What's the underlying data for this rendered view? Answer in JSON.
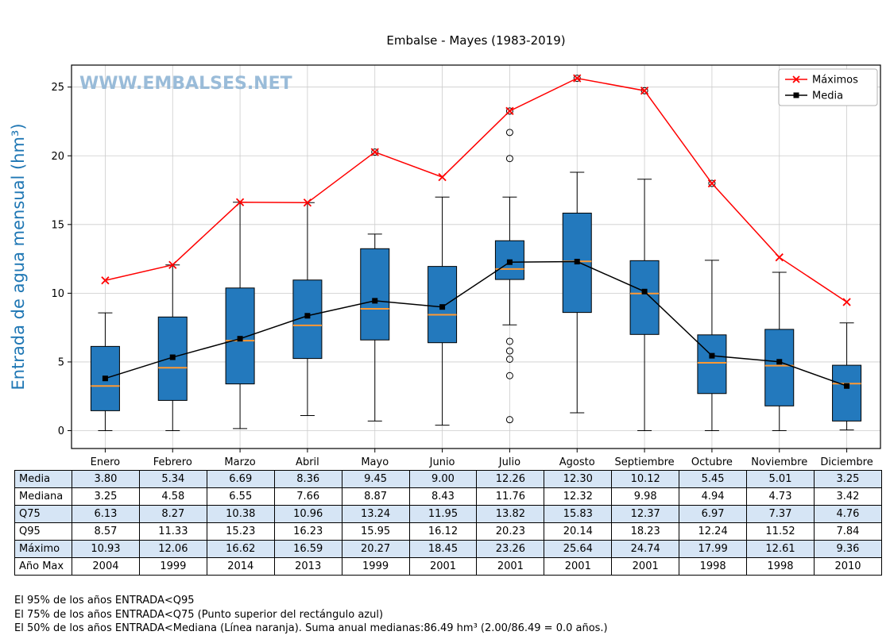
{
  "watermark": "WWW.EMBALSES.NET",
  "chart_data": {
    "type": "boxplot",
    "title": "Embalse - Mayes (1983-2019)",
    "ylabel": "Entrada de agua mensual (hm³)",
    "ylabel_color": "#1f77b4",
    "watermark_color": "#90b5d5",
    "box_fill": "#2379bd",
    "median_color": "#ff9933",
    "grid": true,
    "legend_position": "top-right",
    "ylim": [
      -1.3,
      26.6
    ],
    "yticks": [
      0,
      5,
      10,
      15,
      20,
      25
    ],
    "categories": [
      "Enero",
      "Febrero",
      "Marzo",
      "Abril",
      "Mayo",
      "Junio",
      "Julio",
      "Agosto",
      "Septiembre",
      "Octubre",
      "Noviembre",
      "Diciembre"
    ],
    "boxes": {
      "q1": [
        1.45,
        2.2,
        3.4,
        5.25,
        6.6,
        6.4,
        11.0,
        8.6,
        7.0,
        2.7,
        1.8,
        0.7
      ],
      "q3": [
        6.13,
        8.27,
        10.38,
        10.96,
        13.24,
        11.95,
        13.82,
        15.83,
        12.37,
        6.97,
        7.37,
        4.76
      ],
      "median": [
        3.25,
        4.58,
        6.55,
        7.66,
        8.87,
        8.43,
        11.76,
        12.32,
        9.98,
        4.94,
        4.73,
        3.42
      ],
      "whisker_low": [
        0.0,
        0.0,
        0.15,
        1.1,
        0.7,
        0.4,
        7.7,
        1.3,
        0.0,
        0.0,
        0.0,
        0.05
      ],
      "whisker_high": [
        8.57,
        12.06,
        16.62,
        16.59,
        14.3,
        17.0,
        17.0,
        18.8,
        18.3,
        12.4,
        11.52,
        7.84
      ],
      "outliers": [
        [],
        [],
        [],
        [],
        [
          20.27
        ],
        [],
        [
          23.26,
          21.7,
          19.8,
          6.5,
          5.8,
          5.2,
          4.0,
          0.8
        ],
        [
          25.64
        ],
        [
          24.74
        ],
        [
          17.99
        ],
        [],
        []
      ]
    },
    "series": [
      {
        "name": "Máximos",
        "color": "#ff0000",
        "marker": "x",
        "values": [
          10.93,
          12.06,
          16.62,
          16.59,
          20.27,
          18.45,
          23.26,
          25.64,
          24.74,
          17.99,
          12.61,
          9.36
        ]
      },
      {
        "name": "Media",
        "color": "#000000",
        "marker": "square",
        "values": [
          3.8,
          5.34,
          6.69,
          8.36,
          9.45,
          9.0,
          12.26,
          12.3,
          10.12,
          5.45,
          5.01,
          3.25
        ]
      }
    ]
  },
  "table": {
    "rows": [
      {
        "label": "Media",
        "values": [
          "3.80",
          "5.34",
          "6.69",
          "8.36",
          "9.45",
          "9.00",
          "12.26",
          "12.30",
          "10.12",
          "5.45",
          "5.01",
          "3.25"
        ]
      },
      {
        "label": "Mediana",
        "values": [
          "3.25",
          "4.58",
          "6.55",
          "7.66",
          "8.87",
          "8.43",
          "11.76",
          "12.32",
          "9.98",
          "4.94",
          "4.73",
          "3.42"
        ]
      },
      {
        "label": "Q75",
        "values": [
          "6.13",
          "8.27",
          "10.38",
          "10.96",
          "13.24",
          "11.95",
          "13.82",
          "15.83",
          "12.37",
          "6.97",
          "7.37",
          "4.76"
        ]
      },
      {
        "label": "Q95",
        "values": [
          "8.57",
          "11.33",
          "15.23",
          "16.23",
          "15.95",
          "16.12",
          "20.23",
          "20.14",
          "18.23",
          "12.24",
          "11.52",
          "7.84"
        ]
      },
      {
        "label": "Máximo",
        "values": [
          "10.93",
          "12.06",
          "16.62",
          "16.59",
          "20.27",
          "18.45",
          "23.26",
          "25.64",
          "24.74",
          "17.99",
          "12.61",
          "9.36"
        ]
      },
      {
        "label": "Año Max",
        "values": [
          "2004",
          "1999",
          "2014",
          "2013",
          "1999",
          "2001",
          "2001",
          "2001",
          "2001",
          "1998",
          "1998",
          "2010"
        ]
      }
    ]
  },
  "notes": [
    "El 95% de los años ENTRADA<Q95",
    "El 75% de los años ENTRADA<Q75 (Punto superior del rectángulo azul)",
    "El 50% de los años ENTRADA<Mediana (Línea naranja). Suma anual medianas:86.49 hm³ (2.00/86.49 = 0.0 años.)"
  ]
}
